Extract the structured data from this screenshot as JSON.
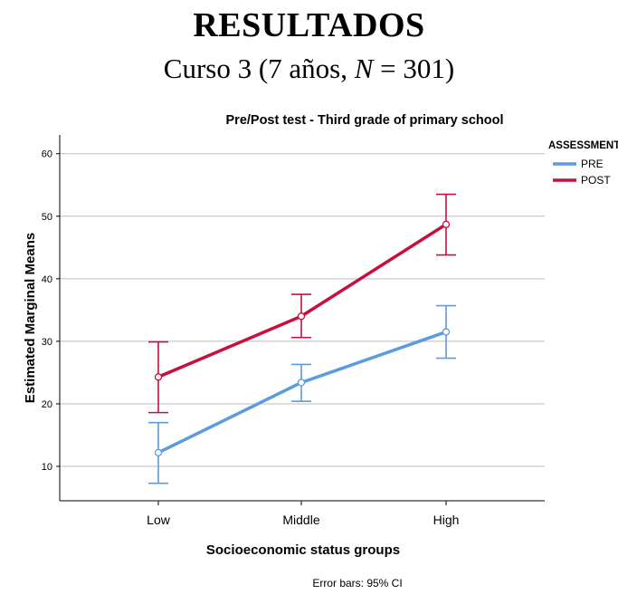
{
  "slide": {
    "title": "RESULTADOS",
    "subtitle_prefix": "Curso 3 (7 años, ",
    "subtitle_italic": "N",
    "subtitle_suffix": " = 301)"
  },
  "chart_data": {
    "type": "line",
    "title": "Pre/Post test - Third grade of primary school",
    "xlabel": "Socioeconomic status groups",
    "ylabel": "Estimated Marginal Means",
    "categories": [
      "Low",
      "Middle",
      "High"
    ],
    "ylim": [
      4.5,
      63
    ],
    "yticks": [
      10,
      20,
      30,
      40,
      50,
      60
    ],
    "grid": true,
    "legend": {
      "title": "ASSESSMENT",
      "placement": "top-right"
    },
    "footnote": "Error bars: 95% CI",
    "series": [
      {
        "name": "PRE",
        "color": "#5b9bdf",
        "values": [
          12.2,
          23.4,
          31.5
        ],
        "ci_low": [
          7.3,
          20.4,
          27.3
        ],
        "ci_high": [
          17.0,
          26.3,
          35.7
        ]
      },
      {
        "name": "POST",
        "color": "#c8103e",
        "values": [
          24.3,
          34.0,
          48.7
        ],
        "ci_low": [
          18.6,
          30.6,
          43.8
        ],
        "ci_high": [
          29.9,
          37.5,
          53.5
        ]
      }
    ]
  }
}
